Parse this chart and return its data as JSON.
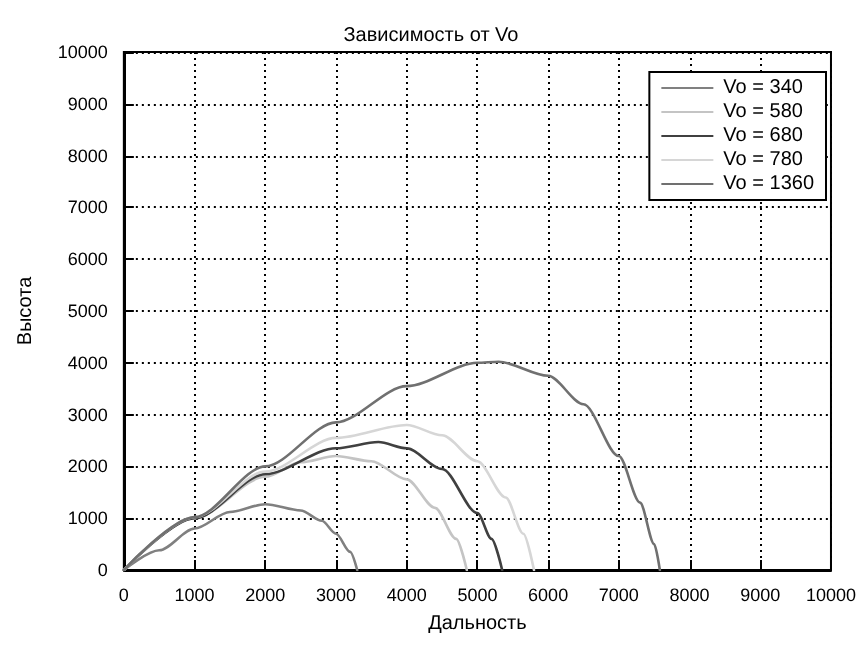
{
  "chart_data": {
    "type": "line",
    "title": "Зависимость от Vo",
    "xlabel": "Дальность",
    "ylabel": "Высота",
    "xlim": [
      0,
      10000
    ],
    "xticks": [
      0,
      1000,
      2000,
      3000,
      4000,
      5000,
      6000,
      7000,
      8000,
      9000,
      10000
    ],
    "ylim": [
      0,
      10000
    ],
    "yticks": [
      0,
      1000,
      2000,
      3000,
      4000,
      5000,
      6000,
      7000,
      8000,
      9000,
      10000
    ],
    "grid": true,
    "legend": "top right",
    "marker": "none",
    "line_style": "solid",
    "series": [
      {
        "name": "Vo = 340",
        "color": "#808080",
        "x": [
          0,
          500,
          1000,
          1500,
          2000,
          2500,
          2800,
          3000,
          3200,
          3300
        ],
        "values": [
          0,
          380,
          800,
          1120,
          1270,
          1150,
          950,
          700,
          350,
          0
        ]
      },
      {
        "name": "Vo = 580",
        "color": "#c4c4c4",
        "x": [
          0,
          1000,
          2000,
          2500,
          3000,
          3500,
          4000,
          4400,
          4700,
          4850
        ],
        "values": [
          0,
          1000,
          1800,
          2080,
          2200,
          2100,
          1750,
          1200,
          600,
          0
        ]
      },
      {
        "name": "Vo = 680",
        "color": "#404040",
        "x": [
          0,
          1000,
          2000,
          3000,
          3600,
          4000,
          4500,
          5000,
          5200,
          5350
        ],
        "values": [
          0,
          1000,
          1850,
          2350,
          2470,
          2350,
          1950,
          1100,
          600,
          0
        ]
      },
      {
        "name": "Vo = 780",
        "color": "#d6d6d6",
        "x": [
          0,
          1000,
          2000,
          3000,
          4000,
          4500,
          5000,
          5400,
          5650,
          5800
        ],
        "values": [
          0,
          1020,
          1900,
          2550,
          2800,
          2600,
          2100,
          1400,
          700,
          0
        ]
      },
      {
        "name": "Vo = 1360",
        "color": "#707070",
        "x": [
          0,
          1000,
          2000,
          3000,
          4000,
          5000,
          5300,
          6000,
          6500,
          7000,
          7300,
          7500,
          7580
        ],
        "values": [
          0,
          1020,
          2000,
          2850,
          3550,
          4000,
          4020,
          3750,
          3200,
          2200,
          1300,
          500,
          0
        ]
      }
    ]
  }
}
